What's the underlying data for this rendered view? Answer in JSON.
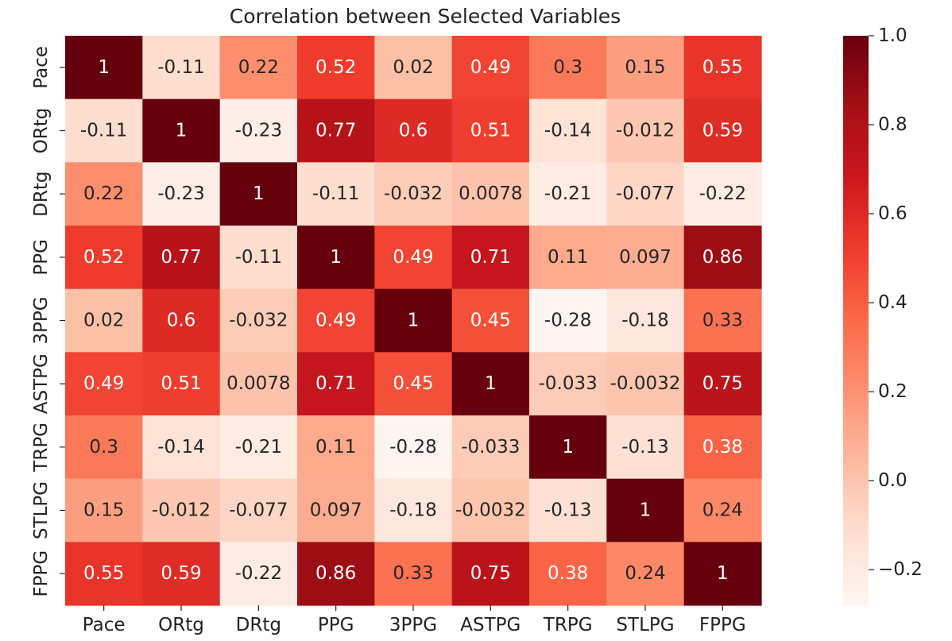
{
  "chart_data": {
    "type": "heatmap",
    "title": "Correlation between Selected Variables",
    "xlabels": [
      "Pace",
      "ORtg",
      "DRtg",
      "PPG",
      "3PPG",
      "ASTPG",
      "TRPG",
      "STLPG",
      "FPPG"
    ],
    "ylabels": [
      "Pace",
      "ORtg",
      "DRtg",
      "PPG",
      "3PPG",
      "ASTPG",
      "TRPG",
      "STLPG",
      "FPPG"
    ],
    "matrix": [
      [
        1,
        -0.11,
        0.22,
        0.52,
        0.02,
        0.49,
        0.3,
        0.15,
        0.55
      ],
      [
        -0.11,
        1,
        -0.23,
        0.77,
        0.6,
        0.51,
        -0.14,
        -0.012,
        0.59
      ],
      [
        0.22,
        -0.23,
        1,
        -0.11,
        -0.032,
        0.0078,
        -0.21,
        -0.077,
        -0.22
      ],
      [
        0.52,
        0.77,
        -0.11,
        1,
        0.49,
        0.71,
        0.11,
        0.097,
        0.86
      ],
      [
        0.02,
        0.6,
        -0.032,
        0.49,
        1,
        0.45,
        -0.28,
        -0.18,
        0.33
      ],
      [
        0.49,
        0.51,
        0.0078,
        0.71,
        0.45,
        1,
        -0.033,
        -0.0032,
        0.75
      ],
      [
        0.3,
        -0.14,
        -0.21,
        0.11,
        -0.28,
        -0.033,
        1,
        -0.13,
        0.38
      ],
      [
        0.15,
        -0.012,
        -0.077,
        0.097,
        -0.18,
        -0.0032,
        -0.13,
        1,
        0.24
      ],
      [
        0.55,
        0.59,
        -0.22,
        0.86,
        0.33,
        0.75,
        0.38,
        0.24,
        1
      ]
    ],
    "annotations": [
      [
        "1",
        "-0.11",
        "0.22",
        "0.52",
        "0.02",
        "0.49",
        "0.3",
        "0.15",
        "0.55"
      ],
      [
        "-0.11",
        "1",
        "-0.23",
        "0.77",
        "0.6",
        "0.51",
        "-0.14",
        "-0.012",
        "0.59"
      ],
      [
        "0.22",
        "-0.23",
        "1",
        "-0.11",
        "-0.032",
        "0.0078",
        "-0.21",
        "-0.077",
        "-0.22"
      ],
      [
        "0.52",
        "0.77",
        "-0.11",
        "1",
        "0.49",
        "0.71",
        "0.11",
        "0.097",
        "0.86"
      ],
      [
        "0.02",
        "0.6",
        "-0.032",
        "0.49",
        "1",
        "0.45",
        "-0.28",
        "-0.18",
        "0.33"
      ],
      [
        "0.49",
        "0.51",
        "0.0078",
        "0.71",
        "0.45",
        "1",
        "-0.033",
        "-0.0032",
        "0.75"
      ],
      [
        "0.3",
        "-0.14",
        "-0.21",
        "0.11",
        "-0.28",
        "-0.033",
        "1",
        "-0.13",
        "0.38"
      ],
      [
        "0.15",
        "-0.012",
        "-0.077",
        "0.097",
        "-0.18",
        "-0.0032",
        "-0.13",
        "1",
        "0.24"
      ],
      [
        "0.55",
        "0.59",
        "-0.22",
        "0.86",
        "0.33",
        "0.75",
        "0.38",
        "0.24",
        "1"
      ]
    ],
    "colormap": "Reds",
    "vmin": -0.28,
    "vmax": 1.0,
    "colorbar_ticks": [
      1.0,
      0.8,
      0.6,
      0.4,
      0.2,
      0.0,
      -0.2
    ],
    "colorbar_tick_labels": [
      "1.0",
      "0.8",
      "0.6",
      "0.4",
      "0.2",
      "0.0",
      "−0.2"
    ],
    "grid": false
  }
}
